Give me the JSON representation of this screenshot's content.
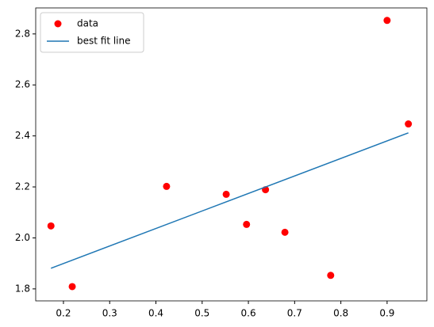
{
  "chart_data": {
    "type": "scatter",
    "series": [
      {
        "name": "data",
        "kind": "scatter",
        "color": "#ff0000",
        "x": [
          0.173,
          0.219,
          0.423,
          0.552,
          0.596,
          0.637,
          0.679,
          0.778,
          0.9,
          0.946
        ],
        "values": [
          2.047,
          1.809,
          2.202,
          2.171,
          2.053,
          2.189,
          2.022,
          1.853,
          2.853,
          2.447
        ]
      },
      {
        "name": "best fit line",
        "kind": "line",
        "color": "#1f77b4",
        "x": [
          0.173,
          0.946
        ],
        "values": [
          1.881,
          2.412
        ]
      }
    ],
    "xlim": [
      0.14,
      0.986
    ],
    "ylim": [
      1.753,
      2.902
    ],
    "xticks": [
      0.2,
      0.3,
      0.4,
      0.5,
      0.6,
      0.7,
      0.8,
      0.9
    ],
    "yticks": [
      1.8,
      {
        "value": 2,
        "label": "2.0"
      },
      2.2,
      2.4,
      2.6,
      2.8
    ],
    "legend": "upper left",
    "grid": false
  }
}
